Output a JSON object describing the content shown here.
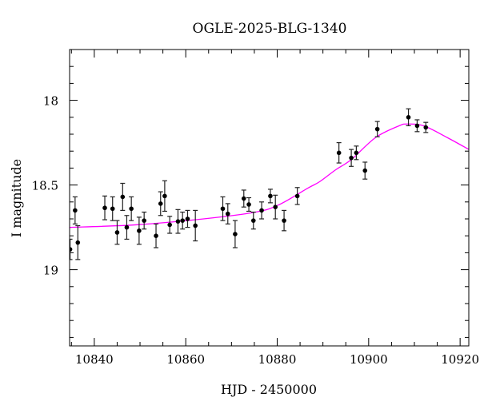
{
  "chart_data": {
    "type": "scatter",
    "title": "OGLE-2025-BLG-1340",
    "xlabel": "HJD - 2450000",
    "ylabel": "I magnitude",
    "xlim": [
      10834.6,
      10921.9
    ],
    "ylim": [
      19.45,
      17.7
    ],
    "y_inverted": true,
    "xticks": [
      10840,
      10860,
      10880,
      10900,
      10920
    ],
    "xtick_labels": [
      "10840",
      "10860",
      "10880",
      "10900",
      "10920"
    ],
    "yticks": [
      18,
      18.5,
      19
    ],
    "ytick_labels": [
      "18",
      "18.5",
      "19"
    ],
    "x_minor_step": 5,
    "y_minor_step": 0.1,
    "grid": false,
    "series": [
      {
        "name": "data",
        "color": "#000000",
        "points": [
          [
            10834.7,
            18.88,
            0.06
          ],
          [
            10835.8,
            18.65,
            0.08
          ],
          [
            10836.4,
            18.84,
            0.1
          ],
          [
            10842.3,
            18.635,
            0.07
          ],
          [
            10844.0,
            18.64,
            0.07
          ],
          [
            10845.0,
            18.78,
            0.07
          ],
          [
            10846.2,
            18.57,
            0.08
          ],
          [
            10847.1,
            18.75,
            0.07
          ],
          [
            10848.1,
            18.64,
            0.07
          ],
          [
            10849.8,
            18.77,
            0.08
          ],
          [
            10850.9,
            18.71,
            0.05
          ],
          [
            10853.5,
            18.8,
            0.07
          ],
          [
            10854.5,
            18.61,
            0.07
          ],
          [
            10855.4,
            18.565,
            0.09
          ],
          [
            10856.5,
            18.735,
            0.05
          ],
          [
            10858.3,
            18.715,
            0.07
          ],
          [
            10859.3,
            18.71,
            0.05
          ],
          [
            10860.4,
            18.7,
            0.05
          ],
          [
            10862.1,
            18.74,
            0.09
          ],
          [
            10868.1,
            18.64,
            0.07
          ],
          [
            10869.2,
            18.67,
            0.06
          ],
          [
            10870.8,
            18.79,
            0.08
          ],
          [
            10872.7,
            18.58,
            0.05
          ],
          [
            10873.8,
            18.615,
            0.04
          ],
          [
            10874.8,
            18.71,
            0.05
          ],
          [
            10876.6,
            18.65,
            0.05
          ],
          [
            10878.5,
            18.565,
            0.04
          ],
          [
            10879.6,
            18.63,
            0.07
          ],
          [
            10881.5,
            18.71,
            0.06
          ],
          [
            10884.4,
            18.565,
            0.05
          ],
          [
            10893.5,
            18.31,
            0.06
          ],
          [
            10896.2,
            18.34,
            0.05
          ],
          [
            10897.3,
            18.31,
            0.04
          ],
          [
            10899.2,
            18.415,
            0.05
          ],
          [
            10901.9,
            18.17,
            0.045
          ],
          [
            10908.7,
            18.1,
            0.05
          ],
          [
            10910.6,
            18.15,
            0.035
          ],
          [
            10912.5,
            18.16,
            0.03
          ]
        ]
      },
      {
        "name": "model",
        "color": "#ff00ff",
        "points": [
          [
            10834.6,
            18.75
          ],
          [
            10849.1,
            18.735
          ],
          [
            10863.9,
            18.7
          ],
          [
            10875.3,
            18.66
          ],
          [
            10880.5,
            18.615
          ],
          [
            10886.6,
            18.52
          ],
          [
            10889.3,
            18.48
          ],
          [
            10892.8,
            18.41
          ],
          [
            10896.2,
            18.35
          ],
          [
            10901.5,
            18.22
          ],
          [
            10906.7,
            18.15
          ],
          [
            10908.5,
            18.14
          ],
          [
            10912.0,
            18.15
          ],
          [
            10917.2,
            18.22
          ],
          [
            10921.9,
            18.29
          ]
        ]
      }
    ]
  }
}
